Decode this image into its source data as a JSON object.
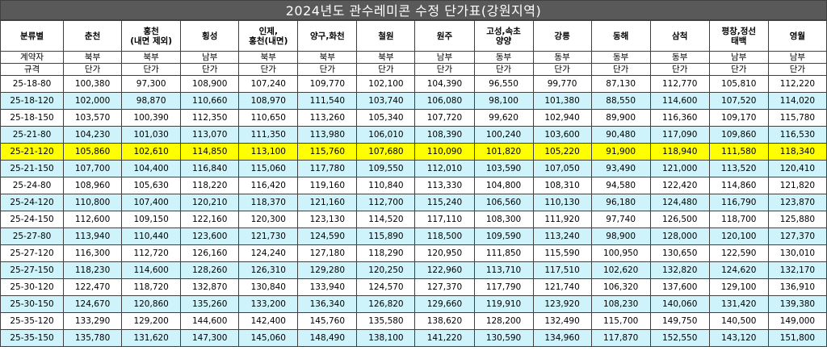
{
  "title": "2024년도 관수레미콘 수정 단가표(강원지역)",
  "headers": [
    "분류별",
    "춘천",
    "홍천\n(내면 제외)",
    "횡성",
    "인제,\n홍천(내면)",
    "양구,화천",
    "철원",
    "원주",
    "고성,속초\n양양",
    "강릉",
    "동해",
    "삼척",
    "평창,정선\n태백",
    "영월"
  ],
  "contractor_row": [
    "계약자",
    "북부",
    "북부",
    "남부",
    "북부",
    "북부",
    "북부",
    "남부",
    "동부",
    "동부",
    "동부",
    "동부",
    "남부",
    "남부"
  ],
  "unit_row": [
    "규격",
    "단가",
    "단가",
    "단가",
    "단가",
    "단가",
    "단가",
    "단가",
    "단가",
    "단가",
    "단가",
    "단가",
    "단가",
    "단가"
  ],
  "rows": [
    {
      "spec": "25-18-80",
      "band": "white",
      "values": [
        "100,380",
        "97,300",
        "108,900",
        "107,240",
        "109,770",
        "102,100",
        "104,390",
        "96,550",
        "99,770",
        "87,130",
        "112,770",
        "105,810",
        "112,220"
      ]
    },
    {
      "spec": "25-18-120",
      "band": "cyan",
      "values": [
        "102,000",
        "98,870",
        "110,660",
        "108,970",
        "111,540",
        "103,740",
        "106,080",
        "98,100",
        "101,380",
        "88,550",
        "114,600",
        "107,520",
        "114,020"
      ]
    },
    {
      "spec": "25-18-150",
      "band": "white",
      "values": [
        "103,570",
        "100,390",
        "112,350",
        "110,650",
        "113,260",
        "105,340",
        "107,720",
        "99,620",
        "102,940",
        "89,900",
        "116,360",
        "109,170",
        "115,780"
      ]
    },
    {
      "spec": "25-21-80",
      "band": "cyan",
      "values": [
        "104,230",
        "101,030",
        "113,070",
        "111,350",
        "113,980",
        "106,010",
        "108,390",
        "100,240",
        "103,600",
        "90,480",
        "117,090",
        "109,860",
        "116,530"
      ]
    },
    {
      "spec": "25-21-120",
      "band": "hl",
      "values": [
        "105,860",
        "102,610",
        "114,850",
        "113,100",
        "115,760",
        "107,680",
        "110,090",
        "101,820",
        "105,220",
        "91,900",
        "118,940",
        "111,580",
        "118,340"
      ]
    },
    {
      "spec": "25-21-150",
      "band": "cyan",
      "values": [
        "107,700",
        "104,400",
        "116,840",
        "115,060",
        "117,780",
        "109,550",
        "112,010",
        "103,590",
        "107,050",
        "93,490",
        "121,000",
        "113,520",
        "120,410"
      ]
    },
    {
      "spec": "25-24-80",
      "band": "white",
      "values": [
        "108,960",
        "105,630",
        "118,220",
        "116,420",
        "119,160",
        "110,840",
        "113,330",
        "104,800",
        "108,310",
        "94,580",
        "122,420",
        "114,860",
        "121,820"
      ]
    },
    {
      "spec": "25-24-120",
      "band": "cyan",
      "values": [
        "110,800",
        "107,400",
        "120,210",
        "118,370",
        "121,160",
        "112,700",
        "115,240",
        "106,560",
        "110,130",
        "96,180",
        "124,480",
        "116,790",
        "123,870"
      ]
    },
    {
      "spec": "25-24-150",
      "band": "white",
      "values": [
        "112,600",
        "109,150",
        "122,160",
        "120,300",
        "123,130",
        "114,520",
        "117,110",
        "108,300",
        "111,920",
        "97,740",
        "126,500",
        "118,700",
        "125,880"
      ]
    },
    {
      "spec": "25-27-80",
      "band": "cyan",
      "values": [
        "113,940",
        "110,440",
        "123,600",
        "121,730",
        "124,590",
        "115,890",
        "118,500",
        "109,590",
        "113,240",
        "98,900",
        "128,000",
        "120,100",
        "127,370"
      ]
    },
    {
      "spec": "25-27-120",
      "band": "white",
      "values": [
        "116,300",
        "112,720",
        "126,160",
        "124,240",
        "127,180",
        "118,290",
        "120,950",
        "111,850",
        "115,590",
        "100,950",
        "130,650",
        "122,590",
        "130,010"
      ]
    },
    {
      "spec": "25-27-150",
      "band": "cyan",
      "values": [
        "118,230",
        "114,600",
        "128,260",
        "126,310",
        "129,280",
        "120,250",
        "122,960",
        "113,710",
        "117,510",
        "102,620",
        "132,820",
        "124,620",
        "132,170"
      ]
    },
    {
      "spec": "25-30-120",
      "band": "white",
      "values": [
        "122,470",
        "118,720",
        "132,870",
        "130,840",
        "133,940",
        "124,570",
        "127,370",
        "117,790",
        "121,740",
        "106,320",
        "137,600",
        "129,100",
        "136,910"
      ]
    },
    {
      "spec": "25-30-150",
      "band": "cyan",
      "values": [
        "124,670",
        "120,860",
        "135,260",
        "133,200",
        "136,340",
        "126,820",
        "129,660",
        "119,910",
        "123,920",
        "108,230",
        "140,060",
        "131,420",
        "139,380"
      ]
    },
    {
      "spec": "25-35-120",
      "band": "white",
      "values": [
        "133,290",
        "129,200",
        "144,600",
        "142,400",
        "145,760",
        "135,580",
        "138,620",
        "128,200",
        "132,490",
        "115,700",
        "149,750",
        "140,500",
        "149,000"
      ]
    },
    {
      "spec": "25-35-150",
      "band": "cyan",
      "values": [
        "135,780",
        "131,620",
        "147,300",
        "145,060",
        "148,490",
        "138,100",
        "141,220",
        "130,590",
        "134,960",
        "117,870",
        "152,550",
        "143,120",
        "151,800"
      ]
    }
  ]
}
